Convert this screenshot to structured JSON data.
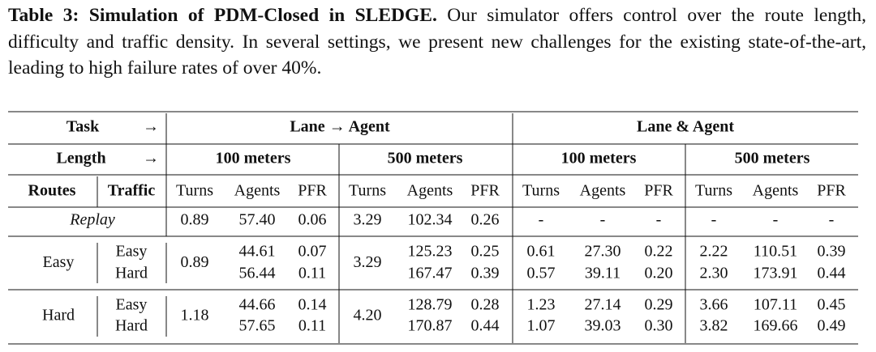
{
  "caption": {
    "label": "Table 3: Simulation of PDM-Closed in SLEDGE.",
    "text": "Our simulator offers control over the route length, difficulty and traffic density. In several settings, we present new challenges for the existing state-of-the-art, leading to high failure rates of over 40%."
  },
  "table": {
    "header": {
      "task": "Task",
      "length": "Length",
      "arrow": "→",
      "settings": [
        "Lane → Agent",
        "Lane & Agent"
      ],
      "lengths": [
        "100 meters",
        "500 meters",
        "100 meters",
        "500 meters"
      ],
      "routes": "Routes",
      "traffic": "Traffic",
      "metrics": [
        "Turns",
        "Agents",
        "PFR",
        "Turns",
        "Agents",
        "PFR",
        "Turns",
        "Agents",
        "PFR",
        "Turns",
        "Agents",
        "PFR"
      ]
    },
    "replay": {
      "label": "Replay",
      "cells": [
        "0.89",
        "57.40",
        "0.06",
        "3.29",
        "102.34",
        "0.26",
        "-",
        "-",
        "-",
        "-",
        "-",
        "-"
      ]
    },
    "groups": [
      {
        "routes": "Easy",
        "turns_100": "0.89",
        "turns_500": "3.29",
        "rows": [
          {
            "traffic": "Easy",
            "cells": [
              "44.61",
              "0.07",
              "125.23",
              "0.25",
              "0.61",
              "27.30",
              "0.22",
              "2.22",
              "110.51",
              "0.39"
            ]
          },
          {
            "traffic": "Hard",
            "cells": [
              "56.44",
              "0.11",
              "167.47",
              "0.39",
              "0.57",
              "39.11",
              "0.20",
              "2.30",
              "173.91",
              "0.44"
            ]
          }
        ]
      },
      {
        "routes": "Hard",
        "turns_100": "1.18",
        "turns_500": "4.20",
        "rows": [
          {
            "traffic": "Easy",
            "cells": [
              "44.66",
              "0.14",
              "128.79",
              "0.28",
              "1.23",
              "27.14",
              "0.29",
              "3.66",
              "107.11",
              "0.45"
            ]
          },
          {
            "traffic": "Hard",
            "cells": [
              "57.65",
              "0.11",
              "170.87",
              "0.44",
              "1.07",
              "39.03",
              "0.30",
              "3.82",
              "169.66",
              "0.49"
            ]
          }
        ]
      }
    ]
  }
}
